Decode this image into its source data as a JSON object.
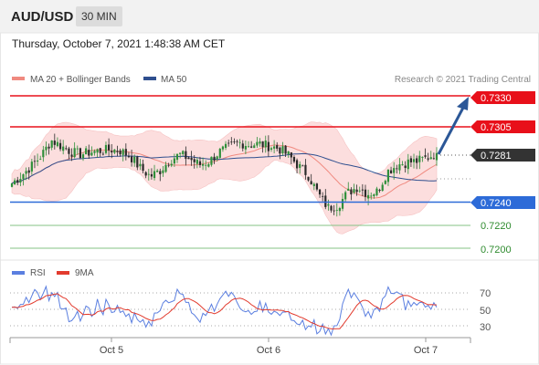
{
  "header": {
    "pair": "AUD/USD",
    "timeframe": "30 MIN"
  },
  "datetime": "Thursday, October 7, 2021 1:48:38 AM CET",
  "legend": {
    "ma20_bb": "MA 20 + Bollinger Bands",
    "ma50": "MA 50",
    "credit": "Research © 2021 Trading Central"
  },
  "levels": [
    {
      "price": "0.7330",
      "kind": "resistance"
    },
    {
      "price": "0.7305",
      "kind": "resistance"
    },
    {
      "price": "0.7281",
      "kind": "current"
    },
    {
      "price": "0.7240",
      "kind": "pivot"
    },
    {
      "price": "0.7220",
      "kind": "support"
    },
    {
      "price": "0.7200",
      "kind": "support"
    }
  ],
  "rsi_legend": {
    "rsi": "RSI",
    "ma9": "9MA"
  },
  "rsi_ticks": [
    "70",
    "50",
    "30"
  ],
  "x_ticks": [
    "Oct 5",
    "Oct 6",
    "Oct 7"
  ],
  "colors": {
    "resistance": "#e8101a",
    "pivot": "#2d6bd8",
    "support": "#2e8b2e",
    "current": "#333333",
    "ma20": "#f08a80",
    "ma50": "#2f4f8f",
    "bands": "#fcdede",
    "rsi": "#5b7fe0",
    "rsi_ma": "#e23b2e"
  },
  "chart_data": {
    "type": "candlestick",
    "symbol": "AUD/USD",
    "interval": "30 MIN",
    "ylim": [
      0.7193,
      0.7338
    ],
    "horizontal_levels": [
      0.733,
      0.7305,
      0.724,
      0.722,
      0.72
    ],
    "last_price": 0.7281,
    "projection_target": 0.733,
    "x_ticks": [
      "Oct 5",
      "Oct 6",
      "Oct 7"
    ],
    "close_path": [
      0.7255,
      0.7262,
      0.727,
      0.7279,
      0.7292,
      0.7287,
      0.7282,
      0.728,
      0.7282,
      0.7283,
      0.7284,
      0.7283,
      0.7278,
      0.7268,
      0.7261,
      0.7266,
      0.7275,
      0.728,
      0.7276,
      0.7271,
      0.7274,
      0.7282,
      0.7286,
      0.729,
      0.7288,
      0.7289,
      0.7287,
      0.7285,
      0.7279,
      0.727,
      0.7262,
      0.7246,
      0.7234,
      0.7236,
      0.7247,
      0.7252,
      0.7246,
      0.7248,
      0.7265,
      0.7271,
      0.7273,
      0.7274,
      0.7277,
      0.7281
    ],
    "rsi_ylim": [
      20,
      80
    ],
    "rsi_levels": [
      70,
      50,
      30
    ]
  }
}
